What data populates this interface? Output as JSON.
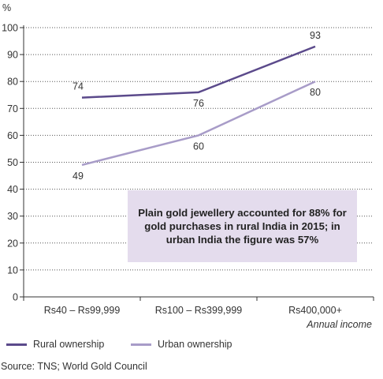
{
  "chart_data": {
    "type": "line",
    "ylabel": "%",
    "xlabel": "Annual income",
    "ylim": [
      0,
      100
    ],
    "yticks": [
      0,
      10,
      20,
      30,
      40,
      50,
      60,
      70,
      80,
      90,
      100
    ],
    "categories": [
      "Rs40 – Rs99,999",
      "Rs100 – Rs399,999",
      "Rs400,000+"
    ],
    "grid": "horizontal dotted",
    "legend_position": "bottom-left",
    "series": [
      {
        "name": "Rural ownership",
        "values": [
          74,
          76,
          93
        ],
        "color": "#5b4a8b"
      },
      {
        "name": "Urban ownership",
        "values": [
          49,
          60,
          80
        ],
        "color": "#a89cc8"
      }
    ],
    "callout": {
      "text": "Plain gold jewellery accounted for 88% for gold purchases in rural India in 2015; in urban India the figure was 57%",
      "background": "#e4dced"
    }
  },
  "source_text": "Source: TNS; World Gold Council"
}
